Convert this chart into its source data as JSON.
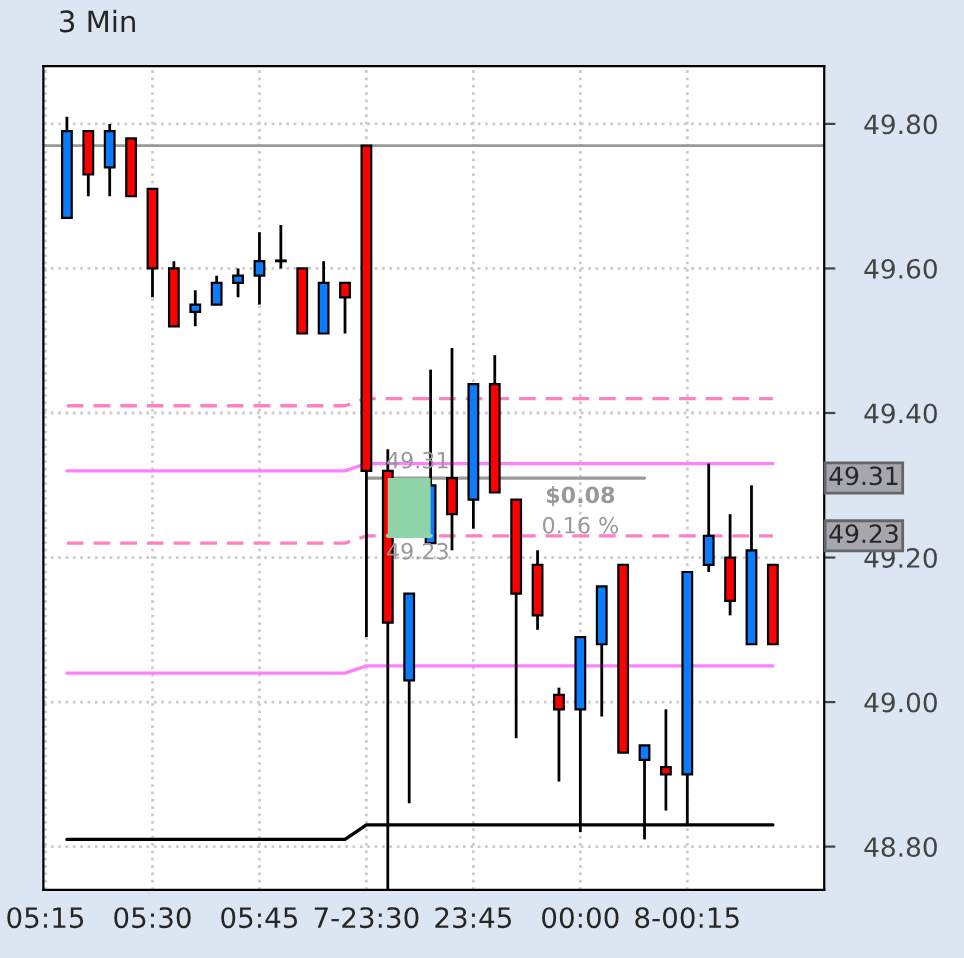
{
  "chart_data": {
    "type": "candlestick",
    "title": "3 Min",
    "categories": [
      "05:15",
      null,
      null,
      null,
      null,
      "05:30",
      null,
      null,
      null,
      null,
      "05:45",
      null,
      null,
      null,
      null,
      "7-23:30",
      null,
      null,
      null,
      null,
      "23:45",
      null,
      null,
      null,
      null,
      "00:00",
      null,
      null,
      null,
      null,
      "8-00:15",
      null,
      null,
      null,
      null,
      null,
      null
    ],
    "ohlc": [
      null,
      [
        49.67,
        49.81,
        49.67,
        49.79
      ],
      [
        49.79,
        49.79,
        49.7,
        49.73
      ],
      [
        49.74,
        49.8,
        49.7,
        49.79
      ],
      [
        49.78,
        49.78,
        49.7,
        49.7
      ],
      [
        49.71,
        49.71,
        49.56,
        49.6
      ],
      [
        49.6,
        49.61,
        49.52,
        49.52
      ],
      [
        49.54,
        49.57,
        49.52,
        49.55
      ],
      [
        49.55,
        49.59,
        49.55,
        49.58
      ],
      [
        49.58,
        49.6,
        49.56,
        49.59
      ],
      [
        49.59,
        49.65,
        49.55,
        49.61
      ],
      [
        49.61,
        49.66,
        49.6,
        49.61
      ],
      [
        49.6,
        49.6,
        49.51,
        49.51
      ],
      [
        49.51,
        49.61,
        49.51,
        49.58
      ],
      [
        49.58,
        49.58,
        49.51,
        49.56
      ],
      [
        49.77,
        49.77,
        49.09,
        49.32
      ],
      [
        49.32,
        49.35,
        48.73,
        49.11
      ],
      [
        49.03,
        49.15,
        48.86,
        49.15
      ],
      [
        49.22,
        49.46,
        49.22,
        49.3
      ],
      [
        49.31,
        49.49,
        49.21,
        49.26
      ],
      [
        49.28,
        49.44,
        49.24,
        49.44
      ],
      [
        49.44,
        49.48,
        49.29,
        49.29
      ],
      [
        49.28,
        49.28,
        48.95,
        49.15
      ],
      [
        49.19,
        49.21,
        49.1,
        49.12
      ],
      [
        49.01,
        49.02,
        48.89,
        48.99
      ],
      [
        48.99,
        49.09,
        48.82,
        49.09
      ],
      [
        49.08,
        49.16,
        48.98,
        49.16
      ],
      [
        49.19,
        49.19,
        48.93,
        48.93
      ],
      [
        48.92,
        48.94,
        48.81,
        48.94
      ],
      [
        48.91,
        48.99,
        48.85,
        48.9
      ],
      [
        48.9,
        49.18,
        48.83,
        49.18
      ],
      [
        49.19,
        49.33,
        49.18,
        49.23
      ],
      [
        49.2,
        49.26,
        49.12,
        49.14
      ],
      [
        49.08,
        49.3,
        49.08,
        49.21
      ],
      [
        49.19,
        49.19,
        49.08,
        49.08
      ],
      null,
      null
    ],
    "colors": [
      null,
      "#0a7cff",
      "#ff0000",
      "#0a7cff",
      "#ff0000",
      "#ff0000",
      "#ff0000",
      "#0a7cff",
      "#0a7cff",
      "#0a7cff",
      "#0a7cff",
      "#0a7cff",
      "#ff0000",
      "#0a7cff",
      "#ff0000",
      "#ff0000",
      "#ff0000",
      "#0a7cff",
      "#0a7cff",
      "#ff0000",
      "#0a7cff",
      "#ff0000",
      "#ff0000",
      "#ff0000",
      "#ff0000",
      "#0a7cff",
      "#0a7cff",
      "#ff0000",
      "#0a7cff",
      "#ff0000",
      "#0a7cff",
      "#0a7cff",
      "#ff0000",
      "#0a7cff",
      "#ff0000",
      null,
      null
    ],
    "series": [
      {
        "type": "line",
        "color": "#ff80ff",
        "values": [
          null,
          49.32,
          49.32,
          49.32,
          49.32,
          49.32,
          49.32,
          49.32,
          49.32,
          49.32,
          49.32,
          49.32,
          49.32,
          49.32,
          49.32,
          49.33,
          49.33,
          49.33,
          49.33,
          49.33,
          49.33,
          49.33,
          49.33,
          49.33,
          49.33,
          49.33,
          49.33,
          49.33,
          49.33,
          49.33,
          49.33,
          49.33,
          49.33,
          49.33,
          49.33,
          null,
          null
        ]
      },
      {
        "type": "line",
        "color": "#ff80c0",
        "line_style": "dashed",
        "values": [
          null,
          49.41,
          49.41,
          49.41,
          49.41,
          49.41,
          49.41,
          49.41,
          49.41,
          49.41,
          49.41,
          49.41,
          49.41,
          49.41,
          49.41,
          49.42,
          49.42,
          49.42,
          49.42,
          49.42,
          49.42,
          49.42,
          49.42,
          49.42,
          49.42,
          49.42,
          49.42,
          49.42,
          49.42,
          49.42,
          49.42,
          49.42,
          49.42,
          49.42,
          49.42,
          null,
          null
        ]
      },
      {
        "type": "line",
        "color": "#ff80c0",
        "line_style": "dashed",
        "values": [
          null,
          49.22,
          49.22,
          49.22,
          49.22,
          49.22,
          49.22,
          49.22,
          49.22,
          49.22,
          49.22,
          49.22,
          49.22,
          49.22,
          49.22,
          49.23,
          null,
          null,
          null,
          49.23,
          49.23,
          49.23,
          49.23,
          49.23,
          49.23,
          49.23,
          49.23,
          49.23,
          49.23,
          49.23,
          49.23,
          49.23,
          49.23,
          49.23,
          49.23,
          null,
          null
        ]
      },
      {
        "type": "line",
        "color": "#ff80ff",
        "values": [
          null,
          49.04,
          49.04,
          49.04,
          49.04,
          49.04,
          49.04,
          49.04,
          49.04,
          49.04,
          49.04,
          49.04,
          49.04,
          49.04,
          49.04,
          49.05,
          49.05,
          49.05,
          49.05,
          49.05,
          49.05,
          49.05,
          49.05,
          49.05,
          49.05,
          49.05,
          49.05,
          49.05,
          49.05,
          49.05,
          49.05,
          49.05,
          49.05,
          49.05,
          49.05,
          null,
          null
        ]
      },
      {
        "type": "line",
        "color": "#000000",
        "values": [
          null,
          48.81,
          48.81,
          48.81,
          48.81,
          48.81,
          48.81,
          48.81,
          48.81,
          48.81,
          48.81,
          48.81,
          48.81,
          48.81,
          48.81,
          48.83,
          48.83,
          48.83,
          48.83,
          48.83,
          48.83,
          48.83,
          48.83,
          48.83,
          48.83,
          48.83,
          48.83,
          48.83,
          48.83,
          48.83,
          48.83,
          48.83,
          48.83,
          48.83,
          48.83,
          null,
          null
        ]
      },
      {
        "type": "line",
        "color": "#999999",
        "values": [
          null,
          null,
          null,
          null,
          null,
          null,
          null,
          null,
          null,
          null,
          null,
          null,
          null,
          null,
          null,
          49.31,
          49.31,
          49.31,
          49.31,
          49.31,
          49.31,
          49.31,
          49.31,
          49.31,
          49.31,
          49.31,
          49.31,
          49.31,
          49.31,
          null,
          null,
          null,
          null,
          null,
          null,
          null,
          null
        ]
      },
      {
        "type": "line",
        "color": "#8fd3a8",
        "values": [
          null,
          null,
          null,
          null,
          null,
          null,
          null,
          null,
          null,
          null,
          null,
          null,
          null,
          null,
          null,
          null,
          49.23,
          49.23,
          49.23,
          null,
          null,
          null,
          null,
          null,
          null,
          null,
          null,
          null,
          null,
          null,
          null,
          null,
          null,
          null,
          null,
          null,
          null
        ],
        "lower": [
          null,
          null,
          null,
          null,
          null,
          null,
          null,
          null,
          null,
          null,
          null,
          null,
          null,
          null,
          null,
          null,
          49.23,
          49.23,
          49.23,
          null,
          null,
          null,
          null,
          null,
          null,
          null,
          null,
          null,
          null,
          null,
          null,
          null,
          null,
          null,
          null,
          null,
          null
        ],
        "upper": [
          null,
          null,
          null,
          null,
          null,
          null,
          null,
          null,
          null,
          null,
          null,
          null,
          null,
          null,
          null,
          null,
          49.31,
          49.31,
          49.31,
          null,
          null,
          null,
          null,
          null,
          null,
          null,
          null,
          null,
          null,
          null,
          null,
          null,
          null,
          null,
          null,
          null,
          null
        ]
      }
    ],
    "ref_lines": [
      {
        "axis": "y",
        "value": 49.77,
        "color": "#999999"
      }
    ],
    "annotations": [
      "49.31",
      "49.23",
      "$0.08",
      "0.16 %",
      "49.31",
      "49.23"
    ],
    "ylim": [
      48.74,
      49.88
    ],
    "yticks": [
      {
        "value": 48.8,
        "label": "48.80"
      },
      {
        "value": 49.0,
        "label": "49.00"
      },
      {
        "value": 49.2,
        "label": "49.20"
      },
      {
        "value": 49.4,
        "label": "49.40"
      },
      {
        "value": 49.6,
        "label": "49.60"
      },
      {
        "value": 49.8,
        "label": "49.80"
      }
    ],
    "grid": true
  }
}
